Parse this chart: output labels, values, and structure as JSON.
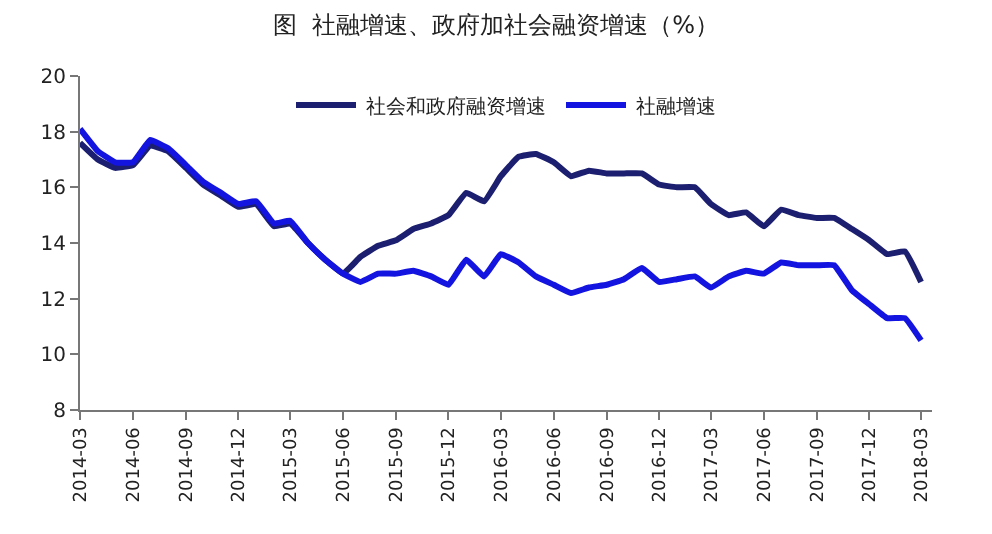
{
  "chart_data": {
    "type": "line",
    "title": "图  社融增速、政府加社会融资增速（%）",
    "x": [
      "2014-03",
      "2014-04",
      "2014-05",
      "2014-06",
      "2014-07",
      "2014-08",
      "2014-09",
      "2014-10",
      "2014-11",
      "2014-12",
      "2015-01",
      "2015-02",
      "2015-03",
      "2015-04",
      "2015-05",
      "2015-06",
      "2015-07",
      "2015-08",
      "2015-09",
      "2015-10",
      "2015-11",
      "2015-12",
      "2016-01",
      "2016-02",
      "2016-03",
      "2016-04",
      "2016-05",
      "2016-06",
      "2016-07",
      "2016-08",
      "2016-09",
      "2016-10",
      "2016-11",
      "2016-12",
      "2017-01",
      "2017-02",
      "2017-03",
      "2017-04",
      "2017-05",
      "2017-06",
      "2017-07",
      "2017-08",
      "2017-09",
      "2017-10",
      "2017-11",
      "2017-12",
      "2018-01",
      "2018-02",
      "2018-03"
    ],
    "series": [
      {
        "name": "社会和政府融资增速",
        "color": "#1c1f70",
        "values": [
          17.6,
          17.0,
          16.7,
          16.8,
          17.5,
          17.3,
          16.7,
          16.1,
          15.7,
          15.3,
          15.4,
          14.6,
          14.7,
          14.0,
          13.4,
          12.9,
          13.5,
          13.9,
          14.1,
          14.5,
          14.7,
          15.0,
          15.8,
          15.5,
          16.4,
          17.1,
          17.2,
          16.9,
          16.4,
          16.6,
          16.5,
          16.5,
          16.5,
          16.1,
          16.0,
          16.0,
          15.4,
          15.0,
          15.1,
          14.6,
          15.2,
          15.0,
          14.9,
          14.9,
          14.5,
          14.1,
          13.6,
          13.7,
          12.6
        ]
      },
      {
        "name": "社融增速",
        "color": "#1414e0",
        "values": [
          18.1,
          17.3,
          16.9,
          16.9,
          17.7,
          17.4,
          16.8,
          16.2,
          15.8,
          15.4,
          15.5,
          14.7,
          14.8,
          14.0,
          13.4,
          12.9,
          12.6,
          12.9,
          12.9,
          13.0,
          12.8,
          12.5,
          13.4,
          12.8,
          13.6,
          13.3,
          12.8,
          12.5,
          12.2,
          12.4,
          12.5,
          12.7,
          13.1,
          12.6,
          12.7,
          12.8,
          12.4,
          12.8,
          13.0,
          12.9,
          13.3,
          13.2,
          13.2,
          13.2,
          12.3,
          11.8,
          11.3,
          11.3,
          10.5
        ]
      }
    ],
    "xlim": [
      "2014-03",
      "2018-03-20"
    ],
    "xticks": [
      {
        "value": "2014-03",
        "label": "2014-03"
      },
      {
        "value": "2014-06",
        "label": "2014-06"
      },
      {
        "value": "2014-09",
        "label": "2014-09"
      },
      {
        "value": "2014-12",
        "label": "2014-12"
      },
      {
        "value": "2015-03",
        "label": "2015-03"
      },
      {
        "value": "2015-06",
        "label": "2015-06"
      },
      {
        "value": "2015-09",
        "label": "2015-09"
      },
      {
        "value": "2015-12",
        "label": "2015-12"
      },
      {
        "value": "2016-03",
        "label": "2016-03"
      },
      {
        "value": "2016-06",
        "label": "2016-06"
      },
      {
        "value": "2016-09",
        "label": "2016-09"
      },
      {
        "value": "2016-12",
        "label": "2016-12"
      },
      {
        "value": "2017-03",
        "label": "2017-03"
      },
      {
        "value": "2017-06",
        "label": "2017-06"
      },
      {
        "value": "2017-09",
        "label": "2017-09"
      },
      {
        "value": "2017-12",
        "label": "2017-12"
      },
      {
        "value": "2018-03",
        "label": "2018-03"
      }
    ],
    "ylim": [
      8,
      20
    ],
    "yticks": [
      8,
      10,
      12,
      14,
      16,
      18,
      20
    ],
    "legend": "top",
    "marker": "none",
    "line_style": "solid"
  }
}
